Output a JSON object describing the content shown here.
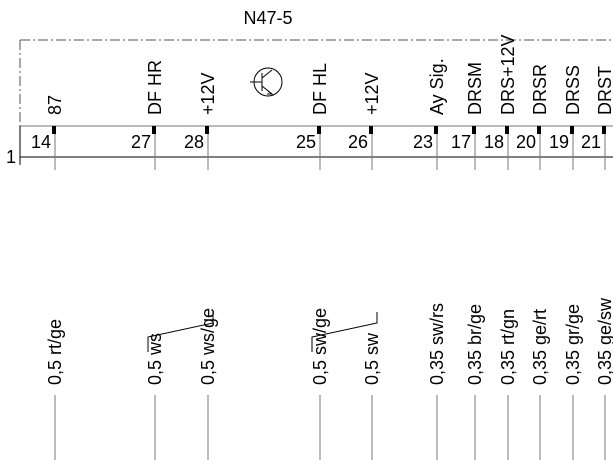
{
  "component": {
    "title": "N47-5",
    "line_label": "1"
  },
  "pins": [
    {
      "label": "87",
      "number": "14",
      "wire": "0,5 rt/ge"
    },
    {
      "label": "DF HR",
      "number": "27",
      "wire": "0,5 ws"
    },
    {
      "label": "+12V",
      "number": "28",
      "wire": "0,5 ws/ge"
    },
    {
      "label": "DF HL",
      "number": "25",
      "wire": "0,5 sw/ge"
    },
    {
      "label": "+12V",
      "number": "26",
      "wire": "0,5 sw"
    },
    {
      "label": "Ay Sig.",
      "number": "23",
      "wire": "0,35 sw/rs"
    },
    {
      "label": "DRSM",
      "number": "17",
      "wire": "0,35 br/ge"
    },
    {
      "label": "DRS+12V",
      "number": "18",
      "wire": "0,35 rt/gn"
    },
    {
      "label": "DRSR",
      "number": "20",
      "wire": "0,35 ge/rt"
    },
    {
      "label": "DRSS",
      "number": "19",
      "wire": "0,35 gr/ge"
    },
    {
      "label": "DRST",
      "number": "21",
      "wire": "0,35 ge/sw"
    }
  ]
}
